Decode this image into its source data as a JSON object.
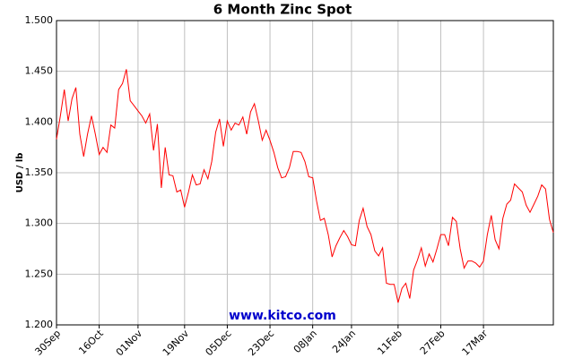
{
  "chart_data": {
    "type": "line",
    "title": "6 Month Zinc Spot",
    "y_label": "USD / lb",
    "watermark": "www.kitco.com",
    "categories": [
      "30Sep",
      null,
      null,
      null,
      null,
      null,
      null,
      null,
      null,
      null,
      null,
      "16Oct",
      null,
      null,
      null,
      null,
      null,
      null,
      null,
      null,
      null,
      "01Nov",
      null,
      null,
      null,
      null,
      null,
      null,
      null,
      null,
      null,
      null,
      null,
      "19Nov",
      null,
      null,
      null,
      null,
      null,
      null,
      null,
      null,
      null,
      null,
      "05Dec",
      null,
      null,
      null,
      null,
      null,
      null,
      null,
      null,
      null,
      null,
      "23Dec",
      null,
      null,
      null,
      null,
      null,
      null,
      null,
      null,
      null,
      null,
      "08Jan",
      null,
      null,
      null,
      null,
      null,
      null,
      null,
      null,
      null,
      "24Jan",
      null,
      null,
      null,
      null,
      null,
      null,
      null,
      null,
      null,
      null,
      null,
      "11Feb",
      null,
      null,
      null,
      null,
      null,
      null,
      null,
      null,
      null,
      null,
      "27Feb",
      null,
      null,
      null,
      null,
      null,
      null,
      null,
      null,
      null,
      null,
      "17Mar",
      null,
      null,
      null,
      null,
      null,
      null,
      null,
      null,
      null,
      null,
      null,
      null,
      null,
      null,
      null,
      null,
      null,
      null
    ],
    "series": [
      {
        "name": "Zinc",
        "color": "#ff0000",
        "values": [
          1.383,
          1.406,
          1.432,
          1.401,
          1.423,
          1.434,
          1.388,
          1.366,
          1.388,
          1.406,
          1.388,
          1.368,
          1.375,
          1.37,
          1.397,
          1.394,
          1.432,
          1.438,
          1.452,
          1.421,
          1.416,
          1.411,
          1.406,
          1.399,
          1.408,
          1.372,
          1.398,
          1.335,
          1.375,
          1.348,
          1.347,
          1.331,
          1.333,
          1.316,
          1.331,
          1.348,
          1.338,
          1.339,
          1.353,
          1.344,
          1.361,
          1.39,
          1.403,
          1.376,
          1.401,
          1.392,
          1.399,
          1.397,
          1.405,
          1.388,
          1.41,
          1.418,
          1.401,
          1.382,
          1.392,
          1.382,
          1.37,
          1.355,
          1.345,
          1.346,
          1.355,
          1.371,
          1.371,
          1.37,
          1.361,
          1.346,
          1.345,
          1.322,
          1.303,
          1.305,
          1.289,
          1.267,
          1.278,
          1.286,
          1.293,
          1.287,
          1.279,
          1.278,
          1.303,
          1.315,
          1.297,
          1.289,
          1.273,
          1.268,
          1.276,
          1.241,
          1.24,
          1.24,
          1.222,
          1.236,
          1.241,
          1.226,
          1.254,
          1.264,
          1.276,
          1.258,
          1.27,
          1.262,
          1.275,
          1.289,
          1.289,
          1.278,
          1.306,
          1.302,
          1.275,
          1.256,
          1.263,
          1.263,
          1.261,
          1.257,
          1.263,
          1.289,
          1.308,
          1.284,
          1.275,
          1.305,
          1.319,
          1.323,
          1.339,
          1.335,
          1.331,
          1.318,
          1.311,
          1.319,
          1.327,
          1.338,
          1.334,
          1.304,
          1.291
        ]
      }
    ],
    "ylim": [
      1.2,
      1.5
    ],
    "yticks": [
      {
        "value": 1.2,
        "label": "1.200"
      },
      {
        "value": 1.25,
        "label": "1.250"
      },
      {
        "value": 1.3,
        "label": "1.300"
      },
      {
        "value": 1.35,
        "label": "1.350"
      },
      {
        "value": 1.4,
        "label": "1.400"
      },
      {
        "value": 1.45,
        "label": "1.450"
      },
      {
        "value": 1.5,
        "label": "1.500"
      }
    ],
    "grid": true
  }
}
